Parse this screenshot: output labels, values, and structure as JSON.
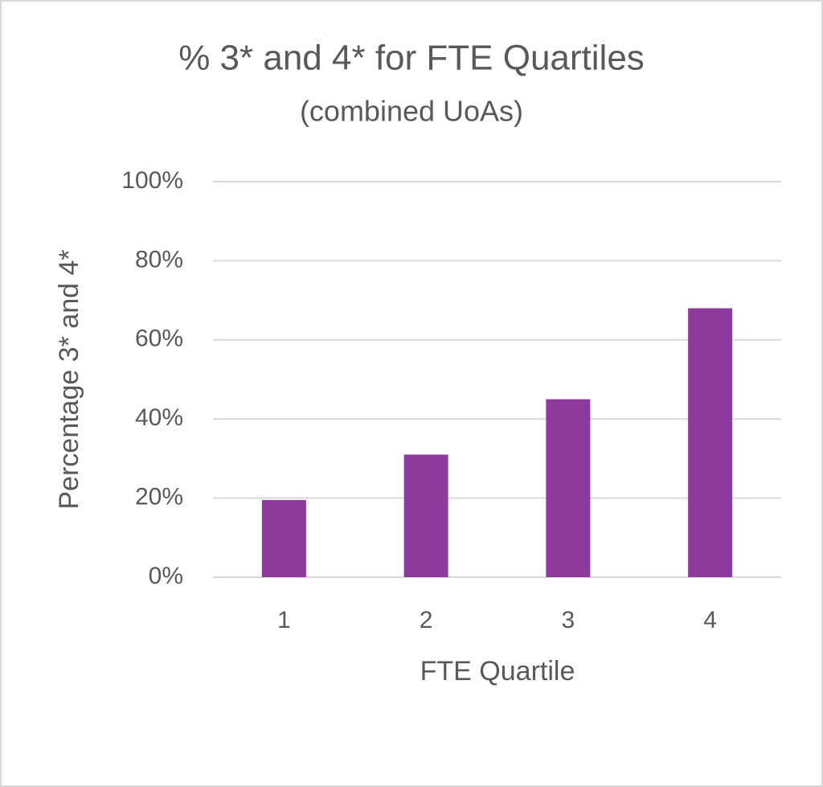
{
  "chart_data": {
    "type": "bar",
    "title": "% 3* and 4* for FTE Quartiles",
    "subtitle": "(combined UoAs)",
    "x_label": "FTE Quartile",
    "y_label": "Percentage 3* and 4*",
    "categories": [
      "1",
      "2",
      "3",
      "4"
    ],
    "values": [
      19.5,
      31,
      45,
      68
    ],
    "color": "#8e3a9c",
    "ylim": [
      0,
      100
    ],
    "yticks": [
      {
        "value": 0,
        "label": "0%"
      },
      {
        "value": 20,
        "label": "20%"
      },
      {
        "value": 40,
        "label": "40%"
      },
      {
        "value": 60,
        "label": "60%"
      },
      {
        "value": 80,
        "label": "80%"
      },
      {
        "value": 100,
        "label": "100%"
      }
    ],
    "grid": true
  }
}
